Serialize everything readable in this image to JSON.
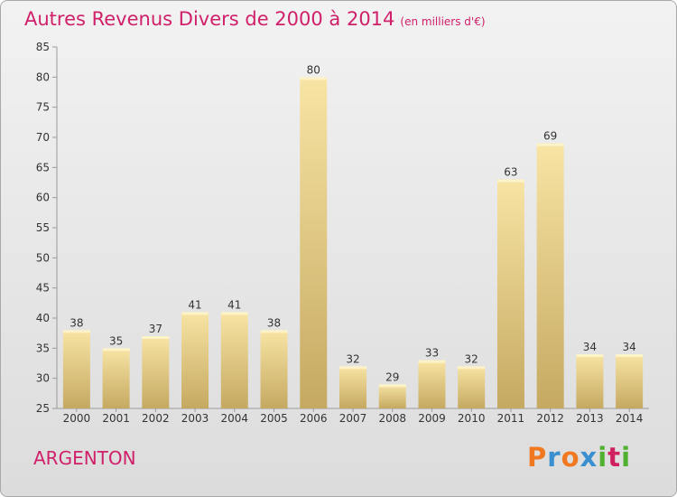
{
  "header": {
    "title": "Autres Revenus Divers de 2000 à 2014",
    "unit": "(en milliers d'€)"
  },
  "footer": {
    "commune": "ARGENTON",
    "logo_text": "Proxiti",
    "logo_colors": [
      "#f07820",
      "#3a8fd0",
      "#f07820",
      "#3a8fd0",
      "#50b030",
      "#d02060",
      "#50b030"
    ]
  },
  "colors": {
    "title": "#d0206a",
    "bar_light": "#f7e2a0",
    "bar_dark": "#c8ac62"
  },
  "chart_data": {
    "type": "bar",
    "title": "Autres Revenus Divers de 2000 à 2014",
    "subtitle": "(en milliers d'€)",
    "xlabel": "",
    "ylabel": "",
    "ylim": [
      25,
      85
    ],
    "yticks": [
      25,
      30,
      35,
      40,
      45,
      50,
      55,
      60,
      65,
      70,
      75,
      80,
      85
    ],
    "grid": false,
    "categories": [
      "2000",
      "2001",
      "2002",
      "2003",
      "2004",
      "2005",
      "2006",
      "2007",
      "2008",
      "2009",
      "2010",
      "2011",
      "2012",
      "2013",
      "2014"
    ],
    "values": [
      38,
      35,
      37,
      41,
      41,
      38,
      80,
      32,
      29,
      33,
      32,
      63,
      69,
      34,
      34
    ]
  }
}
